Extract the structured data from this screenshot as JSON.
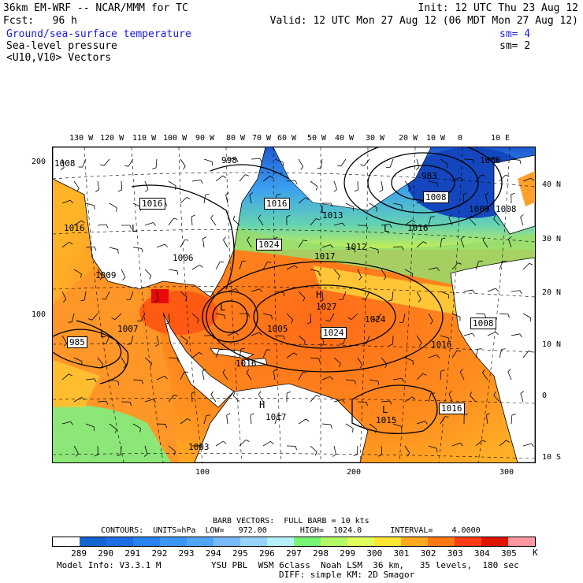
{
  "header": {
    "line1_left": "36km EM-WRF -- NCAR/MMM for TC",
    "line1_right": "Init: 12 UTC Thu 23 Aug 12",
    "line2_left": "Fcst:   96 h",
    "line2_right": "Valid: 12 UTC Mon 27 Aug 12 (06 MDT Mon 27 Aug 12)",
    "field1": "Ground/sea-surface temperature",
    "field1_sm": "sm= 4",
    "field2": "Sea-level pressure",
    "field2_sm": "sm= 2",
    "field3": "<U10,V10> Vectors"
  },
  "top_lon_labels": [
    "130 W",
    "120 W",
    "110 W",
    "100 W",
    "90 W",
    "80 W",
    "70 W",
    "60 W",
    "50 W",
    "40 W",
    "30 W",
    "20 W",
    "10 W",
    "0",
    "10 E"
  ],
  "right_lat_labels": [
    "40 N",
    "30 N",
    "20 N",
    "10 N",
    "0",
    "10 S"
  ],
  "left_grid_labels": [
    "200",
    "100"
  ],
  "bottom_grid_labels": [
    "100",
    "200",
    "300"
  ],
  "pressure_labels": {
    "isobars": [
      "998",
      "1016",
      "1016",
      "1016",
      "1013",
      "1024",
      "1017",
      "1016",
      "1008",
      "983",
      "1009",
      "1006",
      "1012",
      "1009",
      "1027",
      "1024",
      "1024",
      "1005",
      "1007",
      "985",
      "1016",
      "1016",
      "1008",
      "1008",
      "1006",
      "1015",
      "1017",
      "1003",
      "1016",
      "1008"
    ],
    "highs": [
      "H",
      "H"
    ],
    "lows": [
      "L",
      "L",
      "L",
      "L",
      "L",
      "L"
    ]
  },
  "footer": {
    "barb_line": "BARB VECTORS:  FULL BARB = 10 kts",
    "contours_line": "CONTOURS:  UNITS=hPa  LOW=   972.00       HIGH=  1024.0      INTERVAL=    4.0000",
    "colorbar_ticks": [
      "289",
      "290",
      "291",
      "292",
      "293",
      "294",
      "295",
      "296",
      "297",
      "298",
      "299",
      "300",
      "301",
      "302",
      "303",
      "304",
      "305"
    ],
    "colorbar_unit": "K",
    "model_info_left": "Model Info: V3.3.1 M",
    "model_info_right": "YSU PBL  WSM 6class  Noah LSM  36 km,   35 levels,  180 sec",
    "model_info_line2": "DIFF: simple KM: 2D Smagor"
  },
  "colorbar_colors": [
    "#ffffff",
    "#1464d2",
    "#1e6ee6",
    "#2882f0",
    "#3c96f5",
    "#50a5f5",
    "#78b9fa",
    "#96d2fa",
    "#b4f0fa",
    "#78f573",
    "#b4fa64",
    "#e1ff5a",
    "#ffe632",
    "#ffaa1e",
    "#ff7814",
    "#ff3c14",
    "#e11400",
    "#ff96a0"
  ]
}
